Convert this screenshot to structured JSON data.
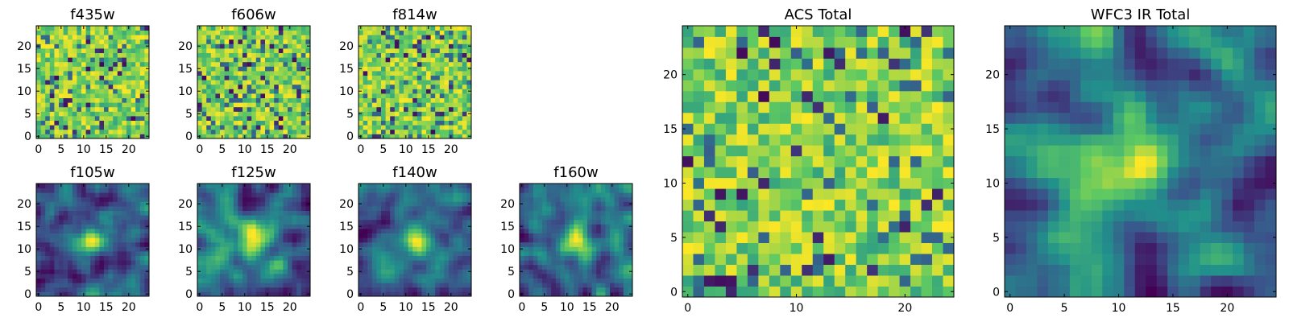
{
  "figure": {
    "description_domain": "Chart",
    "colormap": "viridis",
    "colormap_stops": [
      "#440154",
      "#3b528b",
      "#21918c",
      "#5ec962",
      "#fde725"
    ]
  },
  "chart_data": [
    {
      "type": "heatmap",
      "title": "f435w",
      "grid_size": 25,
      "xticks": [
        "0",
        "5",
        "10",
        "15",
        "20"
      ],
      "yticks": [
        "0",
        "5",
        "10",
        "15",
        "20"
      ],
      "xlim": [
        -0.5,
        24.5
      ],
      "ylim": [
        -0.5,
        24.5
      ],
      "texture": "noisy",
      "seed": 11
    },
    {
      "type": "heatmap",
      "title": "f606w",
      "grid_size": 25,
      "xticks": [
        "0",
        "5",
        "10",
        "15",
        "20"
      ],
      "yticks": [
        "0",
        "5",
        "10",
        "15",
        "20"
      ],
      "xlim": [
        -0.5,
        24.5
      ],
      "ylim": [
        -0.5,
        24.5
      ],
      "texture": "noisy",
      "seed": 23
    },
    {
      "type": "heatmap",
      "title": "f814w",
      "grid_size": 25,
      "xticks": [
        "0",
        "5",
        "10",
        "15",
        "20"
      ],
      "yticks": [
        "0",
        "5",
        "10",
        "15",
        "20"
      ],
      "xlim": [
        -0.5,
        24.5
      ],
      "ylim": [
        -0.5,
        24.5
      ],
      "texture": "noisy",
      "seed": 37
    },
    {
      "type": "heatmap",
      "title": "f105w",
      "grid_size": 25,
      "xticks": [
        "0",
        "5",
        "10",
        "15",
        "20"
      ],
      "yticks": [
        "0",
        "5",
        "10",
        "15",
        "20"
      ],
      "xlim": [
        -0.5,
        24.5
      ],
      "ylim": [
        -0.5,
        24.5
      ],
      "texture": "smooth",
      "seed": 41
    },
    {
      "type": "heatmap",
      "title": "f125w",
      "grid_size": 25,
      "xticks": [
        "0",
        "5",
        "10",
        "15",
        "20"
      ],
      "yticks": [
        "0",
        "5",
        "10",
        "15",
        "20"
      ],
      "xlim": [
        -0.5,
        24.5
      ],
      "ylim": [
        -0.5,
        24.5
      ],
      "texture": "smooth",
      "seed": 53
    },
    {
      "type": "heatmap",
      "title": "f140w",
      "grid_size": 25,
      "xticks": [
        "0",
        "5",
        "10",
        "15",
        "20"
      ],
      "yticks": [
        "0",
        "5",
        "10",
        "15",
        "20"
      ],
      "xlim": [
        -0.5,
        24.5
      ],
      "ylim": [
        -0.5,
        24.5
      ],
      "texture": "smooth",
      "seed": 67
    },
    {
      "type": "heatmap",
      "title": "f160w",
      "grid_size": 25,
      "xticks": [
        "0",
        "5",
        "10",
        "15",
        "20"
      ],
      "yticks": [
        "0",
        "5",
        "10",
        "15",
        "20"
      ],
      "xlim": [
        -0.5,
        24.5
      ],
      "ylim": [
        -0.5,
        24.5
      ],
      "texture": "smooth",
      "seed": 79
    },
    {
      "type": "heatmap",
      "title": "ACS Total",
      "grid_size": 25,
      "xticks": [
        "0",
        "10",
        "20"
      ],
      "yticks": [
        "0",
        "5",
        "10",
        "15",
        "20"
      ],
      "xlim": [
        -0.5,
        24.5
      ],
      "ylim": [
        -0.5,
        24.5
      ],
      "texture": "noisy",
      "seed": 97
    },
    {
      "type": "heatmap",
      "title": "WFC3 IR Total",
      "grid_size": 25,
      "xticks": [
        "0",
        "5",
        "10",
        "15",
        "20"
      ],
      "yticks": [
        "0",
        "5",
        "10",
        "15",
        "20"
      ],
      "xlim": [
        -0.5,
        24.5
      ],
      "ylim": [
        -0.5,
        24.5
      ],
      "texture": "smooth",
      "seed": 101
    }
  ]
}
